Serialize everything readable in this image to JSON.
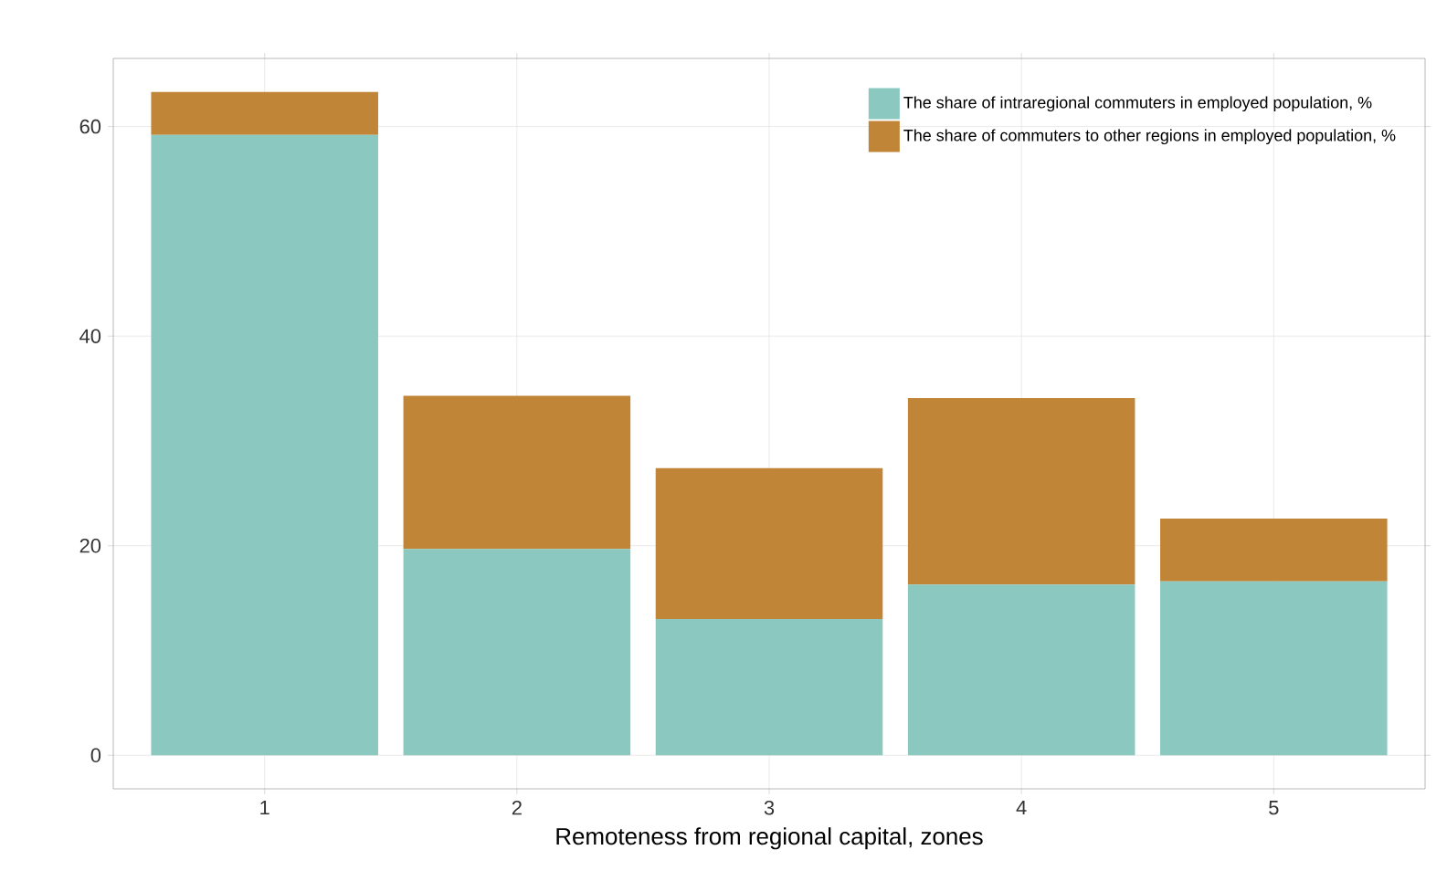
{
  "chart_data": {
    "type": "bar",
    "stacked": true,
    "xlabel": "Remoteness from regional capital, zones",
    "categories": [
      "1",
      "2",
      "3",
      "4",
      "5"
    ],
    "series": [
      {
        "name": "The share of intraregional commuters in employed population, %",
        "color": "#8bc8c0",
        "values": [
          59.2,
          19.7,
          13.0,
          16.3,
          16.6
        ]
      },
      {
        "name": "The share of commuters to other regions in employed population, %",
        "color": "#c08537",
        "values": [
          4.1,
          14.6,
          14.4,
          17.8,
          6.0
        ]
      }
    ],
    "ylim": [
      -3.2,
      66.5
    ],
    "yticks": [
      0,
      20,
      40,
      60
    ],
    "grid": true,
    "legend": "top right"
  }
}
